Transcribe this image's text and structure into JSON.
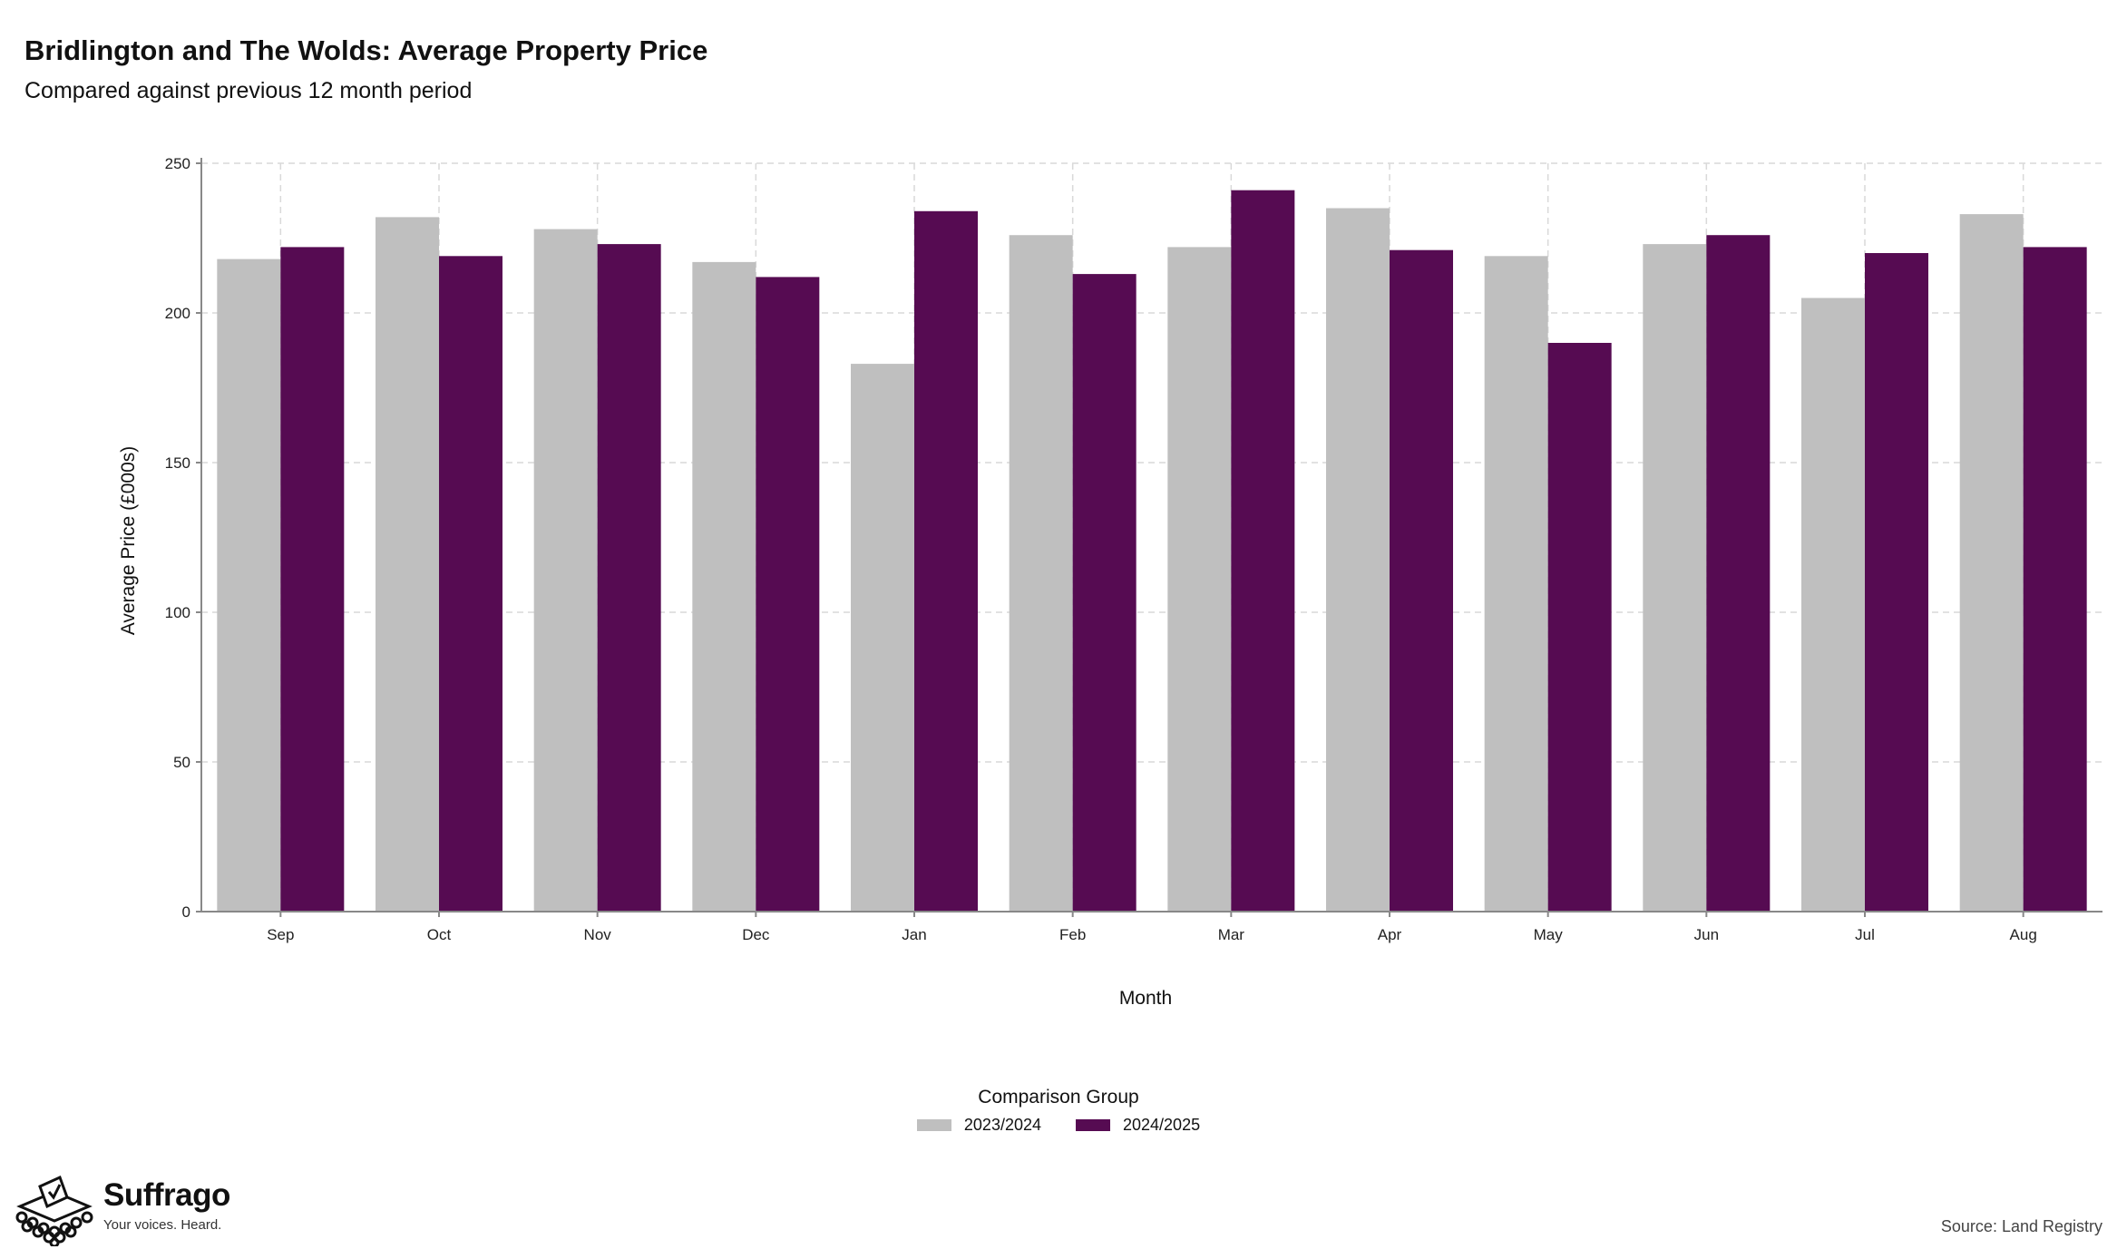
{
  "title": "Bridlington and The Wolds: Average Property Price",
  "subtitle": "Compared against previous 12 month period",
  "legend": {
    "title": "Comparison Group"
  },
  "brand": {
    "name": "Suffrago",
    "tagline": "Your voices. Heard."
  },
  "source": "Source: Land Registry",
  "colors": {
    "series1": "#bfbfbf",
    "series2": "#560b52",
    "grid": "#d9d9d9"
  },
  "chart_data": {
    "type": "bar",
    "title": "Bridlington and The Wolds: Average Property Price",
    "subtitle": "Compared against previous 12 month period",
    "xlabel": "Month",
    "ylabel": "Average Price (£000s)",
    "ylim": [
      0,
      250
    ],
    "yticks": [
      0,
      50,
      100,
      150,
      200,
      250
    ],
    "grid": true,
    "legend_position": "bottom",
    "categories": [
      "Sep",
      "Oct",
      "Nov",
      "Dec",
      "Jan",
      "Feb",
      "Mar",
      "Apr",
      "May",
      "Jun",
      "Jul",
      "Aug"
    ],
    "series": [
      {
        "name": "2023/2024",
        "color": "#bfbfbf",
        "values": [
          218,
          232,
          228,
          217,
          183,
          226,
          222,
          235,
          219,
          223,
          205,
          233
        ]
      },
      {
        "name": "2024/2025",
        "color": "#560b52",
        "values": [
          222,
          219,
          223,
          212,
          234,
          213,
          241,
          221,
          190,
          226,
          220,
          222
        ]
      }
    ]
  }
}
